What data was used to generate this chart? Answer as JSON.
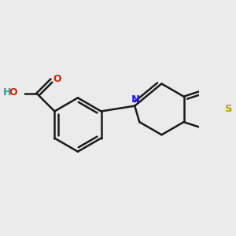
{
  "background_color": "#ebebeb",
  "bond_color": "#1a1a1a",
  "bond_width": 1.8,
  "atom_colors": {
    "O_red": "#cc2200",
    "O_carbonyl": "#cc2200",
    "H": "#3a9999",
    "N": "#1a1aff",
    "S": "#b8a000"
  },
  "figsize": [
    3.0,
    3.0
  ],
  "dpi": 100
}
